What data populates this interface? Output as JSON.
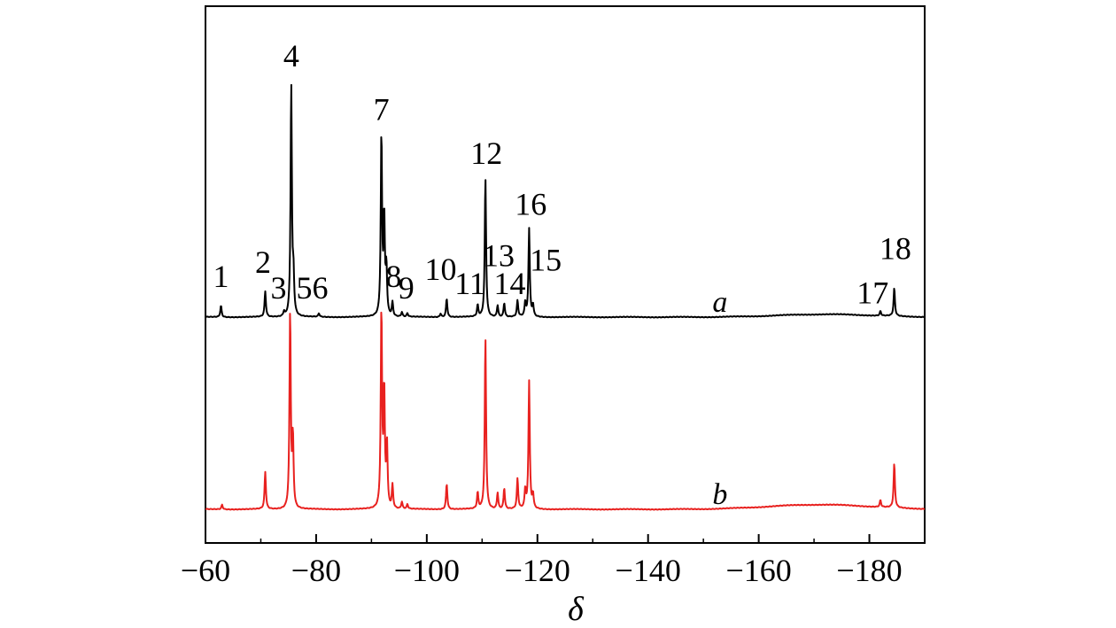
{
  "chart_data": {
    "type": "line",
    "title": "",
    "xlabel": "δ",
    "ylabel": "",
    "xlim": [
      -60,
      -190
    ],
    "xaxis_reversed": true,
    "xticks": [
      -60,
      -80,
      -100,
      -120,
      -140,
      -160,
      -180
    ],
    "xtick_labels": [
      "−60",
      "−80",
      "−100",
      "−120",
      "−140",
      "−160",
      "−180"
    ],
    "yticks_shown": false,
    "grid": false,
    "series": [
      {
        "label": "a",
        "color": "#000000",
        "baseline_relative": 1.0,
        "broad_hump": {
          "center": -172,
          "width": 12,
          "height": 0.012
        },
        "peaks": [
          {
            "x": -62.8,
            "h": 0.05
          },
          {
            "x": -70.8,
            "h": 0.11
          },
          {
            "x": -74.2,
            "h": 0.02
          },
          {
            "x": -75.5,
            "h": 1.0
          },
          {
            "x": -75.9,
            "h": 0.16
          },
          {
            "x": -80.5,
            "h": 0.015
          },
          {
            "x": -91.8,
            "h": 0.78
          },
          {
            "x": -92.3,
            "h": 0.42
          },
          {
            "x": -92.7,
            "h": 0.2
          },
          {
            "x": -93.8,
            "h": 0.06
          },
          {
            "x": -95.5,
            "h": 0.02
          },
          {
            "x": -96.5,
            "h": 0.015
          },
          {
            "x": -102.5,
            "h": 0.015
          },
          {
            "x": -103.6,
            "h": 0.08
          },
          {
            "x": -109.2,
            "h": 0.05
          },
          {
            "x": -110.6,
            "h": 0.6
          },
          {
            "x": -112.8,
            "h": 0.05
          },
          {
            "x": -114.0,
            "h": 0.06
          },
          {
            "x": -116.4,
            "h": 0.07
          },
          {
            "x": -117.8,
            "h": 0.06
          },
          {
            "x": -118.5,
            "h": 0.38
          },
          {
            "x": -119.2,
            "h": 0.05
          },
          {
            "x": -182.0,
            "h": 0.02
          },
          {
            "x": -184.5,
            "h": 0.12
          }
        ]
      },
      {
        "label": "b",
        "color": "#e8211f",
        "baseline_relative": 0.0,
        "broad_hump": {
          "center": -171,
          "width": 13,
          "height": 0.02
        },
        "peaks": [
          {
            "x": -63.0,
            "h": 0.02
          },
          {
            "x": -70.8,
            "h": 0.16
          },
          {
            "x": -75.3,
            "h": 0.85
          },
          {
            "x": -75.8,
            "h": 0.3
          },
          {
            "x": -91.8,
            "h": 0.85
          },
          {
            "x": -92.3,
            "h": 0.5
          },
          {
            "x": -92.8,
            "h": 0.27
          },
          {
            "x": -93.8,
            "h": 0.1
          },
          {
            "x": -95.5,
            "h": 0.03
          },
          {
            "x": -96.5,
            "h": 0.02
          },
          {
            "x": -103.6,
            "h": 0.11
          },
          {
            "x": -109.2,
            "h": 0.07
          },
          {
            "x": -110.6,
            "h": 0.74
          },
          {
            "x": -112.8,
            "h": 0.07
          },
          {
            "x": -114.0,
            "h": 0.09
          },
          {
            "x": -116.4,
            "h": 0.13
          },
          {
            "x": -117.8,
            "h": 0.08
          },
          {
            "x": -118.5,
            "h": 0.55
          },
          {
            "x": -119.2,
            "h": 0.06
          },
          {
            "x": -182.0,
            "h": 0.03
          },
          {
            "x": -184.5,
            "h": 0.19
          }
        ]
      }
    ],
    "annotations": [
      {
        "text": "1",
        "x": -62.8,
        "series": "a",
        "h": 0.13
      },
      {
        "text": "2",
        "x": -70.4,
        "series": "a",
        "h": 0.19
      },
      {
        "text": "3",
        "x": -73.2,
        "series": "a",
        "h": 0.08
      },
      {
        "text": "4",
        "x": -75.5,
        "series": "a",
        "h": 1.08
      },
      {
        "text": "56",
        "x": -79.3,
        "series": "a",
        "h": 0.08
      },
      {
        "text": "7",
        "x": -91.8,
        "series": "a",
        "h": 0.85
      },
      {
        "text": "8",
        "x": -94.0,
        "series": "a",
        "h": 0.13
      },
      {
        "text": "9",
        "x": -96.3,
        "series": "a",
        "h": 0.08
      },
      {
        "text": "10",
        "x": -102.5,
        "series": "a",
        "h": 0.16
      },
      {
        "text": "11",
        "x": -107.8,
        "series": "a",
        "h": 0.1
      },
      {
        "text": "12",
        "x": -110.8,
        "series": "a",
        "h": 0.66
      },
      {
        "text": "13",
        "x": -113.0,
        "series": "a",
        "h": 0.22
      },
      {
        "text": "14",
        "x": -115.0,
        "series": "a",
        "h": 0.1
      },
      {
        "text": "15",
        "x": -121.5,
        "series": "a",
        "h": 0.2
      },
      {
        "text": "16",
        "x": -118.8,
        "series": "a",
        "h": 0.44
      },
      {
        "text": "17",
        "x": -180.6,
        "series": "a",
        "h": 0.06
      },
      {
        "text": "18",
        "x": -184.7,
        "series": "a",
        "h": 0.25
      }
    ]
  }
}
